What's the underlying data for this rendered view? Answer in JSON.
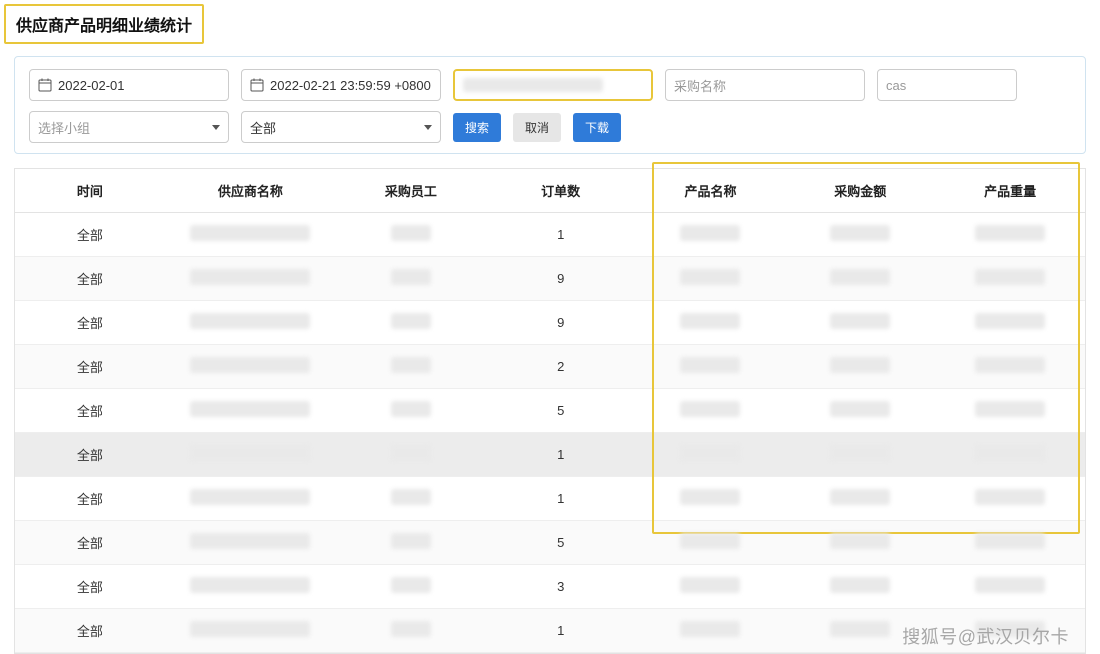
{
  "title": "供应商产品明细业绩统计",
  "filters": {
    "start_date": "2022-02-01",
    "end_date": "2022-02-21 23:59:59 +0800",
    "supplier_placeholder": "",
    "purchase_name_placeholder": "采购名称",
    "cas_placeholder": "cas",
    "group_placeholder": "选择小组",
    "all_label": "全部"
  },
  "buttons": {
    "search": "搜索",
    "cancel": "取消",
    "download": "下载"
  },
  "columns": [
    "时间",
    "供应商名称",
    "采购员工",
    "订单数",
    "产品名称",
    "采购金额",
    "产品重量"
  ],
  "rows": [
    {
      "time": "全部",
      "orders": "1",
      "hl": false
    },
    {
      "time": "全部",
      "orders": "9",
      "hl": false
    },
    {
      "time": "全部",
      "orders": "9",
      "hl": false
    },
    {
      "time": "全部",
      "orders": "2",
      "hl": false
    },
    {
      "time": "全部",
      "orders": "5",
      "hl": false
    },
    {
      "time": "全部",
      "orders": "1",
      "hl": true
    },
    {
      "time": "全部",
      "orders": "1",
      "hl": false
    },
    {
      "time": "全部",
      "orders": "5",
      "hl": false
    },
    {
      "time": "全部",
      "orders": "3",
      "hl": false
    },
    {
      "time": "全部",
      "orders": "1",
      "hl": false
    }
  ],
  "watermark": "搜狐号@武汉贝尔卡",
  "colors": {
    "highlight_border": "#e8c63a",
    "primary": "#2f7bd9",
    "panel_border": "#d0e3f0"
  }
}
